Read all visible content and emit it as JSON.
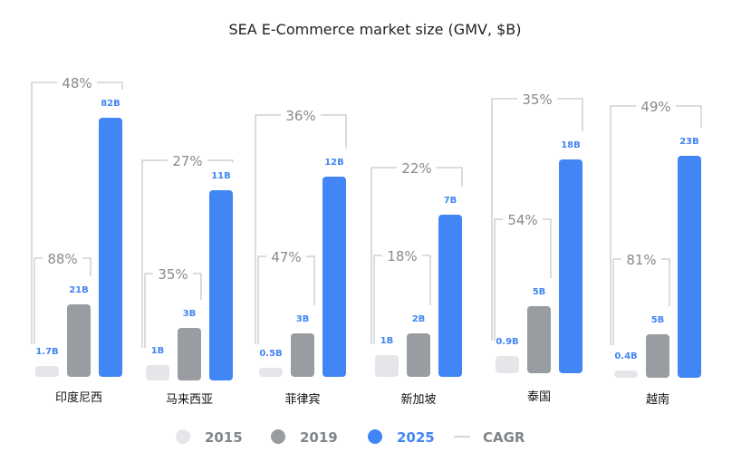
{
  "chart_data": {
    "type": "bar",
    "title": "SEA E-Commerce market size (GMV, $B)",
    "xlabel": "",
    "ylabel": "",
    "categories": [
      "印度尼西",
      "马来西亚",
      "菲律宾",
      "新加坡",
      "泰国",
      "越南"
    ],
    "series": [
      {
        "name": "2015",
        "color": "#e4e6e9",
        "values": [
          1.7,
          1,
          0.5,
          1,
          0.9,
          0.4
        ],
        "labels": [
          "1.7B",
          "1B",
          "0.5B",
          "1B",
          "0.9B",
          "0.4B"
        ]
      },
      {
        "name": "2019",
        "color": "#999ca1",
        "values": [
          21,
          3,
          3,
          2,
          5,
          5
        ],
        "labels": [
          "21B",
          "3B",
          "3B",
          "2B",
          "5B",
          "5B"
        ]
      },
      {
        "name": "2025",
        "color": "#4285f4",
        "values": [
          82,
          11,
          12,
          7,
          18,
          23
        ],
        "labels": [
          "82B",
          "11B",
          "12B",
          "7B",
          "18B",
          "23B"
        ]
      }
    ],
    "cagr_2015_2019": [
      "88%",
      "35%",
      "47%",
      "18%",
      "54%",
      "81%"
    ],
    "cagr_2019_2025": [
      "48%",
      "27%",
      "36%",
      "22%",
      "35%",
      "49%"
    ],
    "legend": {
      "placement": "bottom",
      "items": [
        {
          "label": "2015",
          "color": "#e4e6e9",
          "marker": "circle",
          "text_color": "#808589"
        },
        {
          "label": "2019",
          "color": "#999ca1",
          "marker": "circle",
          "text_color": "#808589"
        },
        {
          "label": "2025",
          "color": "#4285f4",
          "marker": "circle",
          "text_color": "#4285f4"
        },
        {
          "label": "CAGR",
          "color": "#c8c8c8",
          "marker": "line",
          "text_color": "#808589"
        }
      ]
    }
  }
}
